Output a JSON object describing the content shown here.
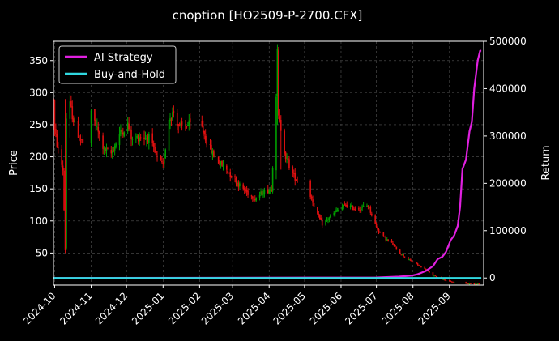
{
  "chart_data": {
    "type": "line",
    "title": "cnoption [HO2509-P-2700.CFX]",
    "ylabel": "Price",
    "y2label": "Return",
    "xlim": [
      "2024-09-30",
      "2025-09-30"
    ],
    "ylim": [
      0,
      380
    ],
    "y2lim": [
      -15000,
      500000
    ],
    "x_ticks": [
      "2024-10",
      "2024-11",
      "2024-12",
      "2025-01",
      "2025-02",
      "2025-03",
      "2025-04",
      "2025-05",
      "2025-06",
      "2025-07",
      "2025-08",
      "2025-09"
    ],
    "y_ticks": [
      50,
      100,
      150,
      200,
      250,
      300,
      350
    ],
    "y2_ticks": [
      0,
      100000,
      200000,
      300000,
      400000,
      500000
    ],
    "grid": true,
    "legend_position": "top-left",
    "colors": {
      "up": "#00a000",
      "down": "#e01010",
      "strategy": "#e020e0",
      "buyhold": "#30d8e0",
      "grid": "#555555"
    },
    "candlestick": {
      "name": "Price",
      "anchors": [
        [
          "2024-09-30",
          290
        ],
        [
          "2024-10-01",
          240
        ],
        [
          "2024-10-04",
          210
        ],
        [
          "2024-10-08",
          180
        ],
        [
          "2024-10-10",
          55
        ],
        [
          "2024-10-11",
          260
        ],
        [
          "2024-10-14",
          280
        ],
        [
          "2024-10-18",
          250
        ],
        [
          "2024-10-22",
          230
        ],
        [
          "2024-10-25",
          222
        ],
        [
          "2024-11-01",
          265
        ],
        [
          "2024-11-04",
          255
        ],
        [
          "2024-11-12",
          210
        ],
        [
          "2024-11-18",
          205
        ],
        [
          "2024-11-25",
          235
        ],
        [
          "2024-12-02",
          250
        ],
        [
          "2024-12-06",
          225
        ],
        [
          "2024-12-12",
          232
        ],
        [
          "2024-12-20",
          230
        ],
        [
          "2024-12-26",
          200
        ],
        [
          "2025-01-01",
          185
        ],
        [
          "2025-01-06",
          260
        ],
        [
          "2025-01-10",
          270
        ],
        [
          "2025-01-15",
          245
        ],
        [
          "2025-01-22",
          250
        ],
        [
          "2025-02-03",
          245
        ],
        [
          "2025-02-07",
          225
        ],
        [
          "2025-02-12",
          205
        ],
        [
          "2025-02-18",
          190
        ],
        [
          "2025-02-24",
          180
        ],
        [
          "2025-03-03",
          165
        ],
        [
          "2025-03-07",
          155
        ],
        [
          "2025-03-13",
          145
        ],
        [
          "2025-03-20",
          135
        ],
        [
          "2025-03-27",
          145
        ],
        [
          "2025-04-03",
          150
        ],
        [
          "2025-04-07",
          300
        ],
        [
          "2025-04-08",
          360
        ],
        [
          "2025-04-09",
          260
        ],
        [
          "2025-04-11",
          245
        ],
        [
          "2025-04-15",
          200
        ],
        [
          "2025-04-22",
          170
        ],
        [
          "2025-05-06",
          140
        ],
        [
          "2025-05-12",
          110
        ],
        [
          "2025-05-16",
          95
        ],
        [
          "2025-05-22",
          105
        ],
        [
          "2025-05-28",
          115
        ],
        [
          "2025-06-05",
          125
        ],
        [
          "2025-06-12",
          120
        ],
        [
          "2025-06-18",
          120
        ],
        [
          "2025-06-24",
          125
        ],
        [
          "2025-07-01",
          90
        ],
        [
          "2025-07-07",
          75
        ],
        [
          "2025-07-14",
          65
        ],
        [
          "2025-07-21",
          50
        ],
        [
          "2025-07-28",
          40
        ],
        [
          "2025-08-04",
          33
        ],
        [
          "2025-08-11",
          25
        ],
        [
          "2025-08-18",
          15
        ],
        [
          "2025-08-25",
          10
        ],
        [
          "2025-09-02",
          5
        ],
        [
          "2025-09-10",
          3
        ],
        [
          "2025-09-20",
          2
        ],
        [
          "2025-09-26",
          2
        ]
      ],
      "gaps": [
        [
          "2024-10-28",
          "2024-10-31"
        ],
        [
          "2025-01-27",
          "2025-02-02"
        ],
        [
          "2025-04-28",
          "2025-05-05"
        ],
        [
          "2025-09-06",
          "2025-09-12"
        ]
      ],
      "spikes": [
        [
          "2024-10-10",
          50,
          290
        ],
        [
          "2024-10-14",
          230,
          290
        ],
        [
          "2025-04-08",
          250,
          362
        ],
        [
          "2025-04-11",
          180,
          240
        ]
      ]
    },
    "series": [
      {
        "name": "AI Strategy",
        "axis": "right",
        "x": [
          "2024-09-30",
          "2025-07-01",
          "2025-07-20",
          "2025-07-31",
          "2025-08-05",
          "2025-08-12",
          "2025-08-18",
          "2025-08-22",
          "2025-08-26",
          "2025-08-29",
          "2025-09-02",
          "2025-09-05",
          "2025-09-08",
          "2025-09-10",
          "2025-09-12",
          "2025-09-15",
          "2025-09-18",
          "2025-09-20",
          "2025-09-22",
          "2025-09-25",
          "2025-09-27",
          "2025-09-28"
        ],
        "values": [
          0,
          1000,
          3000,
          5000,
          8000,
          15000,
          25000,
          40000,
          45000,
          55000,
          80000,
          90000,
          110000,
          150000,
          230000,
          250000,
          310000,
          330000,
          400000,
          460000,
          480000,
          480000
        ]
      },
      {
        "name": "Buy-and-Hold",
        "axis": "right",
        "x": [
          "2024-09-30",
          "2025-09-28"
        ],
        "values": [
          0,
          0
        ]
      }
    ]
  }
}
